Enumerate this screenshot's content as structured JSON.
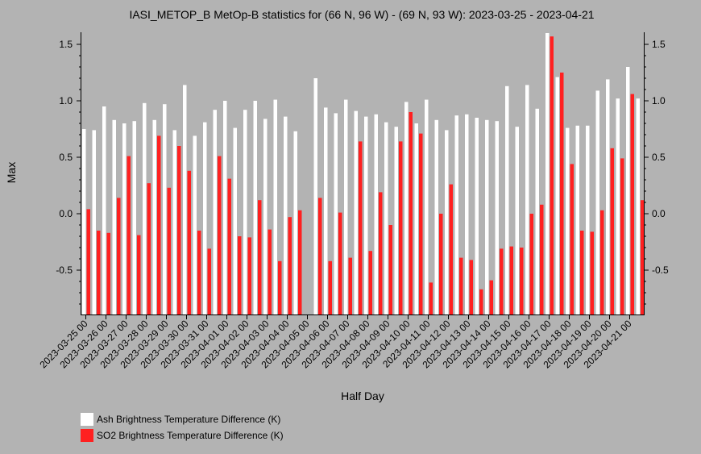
{
  "chart_data": {
    "type": "bar",
    "title": "IASI_METOP_B MetOp-B statistics for (66 N, 96 W) - (69 N, 93 W): 2023-03-25 - 2023-04-21",
    "xlabel": "Half Day",
    "ylabel": "Max",
    "ylim": [
      -0.9,
      1.6
    ],
    "yticks": [
      "-0.5",
      "0.0",
      "0.5",
      "1.0",
      "1.5"
    ],
    "categories": [
      "2023-03-25 00",
      "2023-03-25 12",
      "2023-03-26 00",
      "2023-03-26 12",
      "2023-03-27 00",
      "2023-03-27 12",
      "2023-03-28 00",
      "2023-03-28 12",
      "2023-03-29 00",
      "2023-03-29 12",
      "2023-03-30 00",
      "2023-03-30 12",
      "2023-03-31 00",
      "2023-03-31 12",
      "2023-04-01 00",
      "2023-04-01 12",
      "2023-04-02 00",
      "2023-04-02 12",
      "2023-04-03 00",
      "2023-04-03 12",
      "2023-04-04 00",
      "2023-04-04 12",
      "2023-04-05 00",
      "2023-04-05 12",
      "2023-04-06 00",
      "2023-04-06 12",
      "2023-04-07 00",
      "2023-04-07 12",
      "2023-04-08 00",
      "2023-04-08 12",
      "2023-04-09 00",
      "2023-04-09 12",
      "2023-04-10 00",
      "2023-04-10 12",
      "2023-04-11 00",
      "2023-04-11 12",
      "2023-04-12 00",
      "2023-04-12 12",
      "2023-04-13 00",
      "2023-04-13 12",
      "2023-04-14 00",
      "2023-04-14 12",
      "2023-04-15 00",
      "2023-04-15 12",
      "2023-04-16 00",
      "2023-04-16 12",
      "2023-04-17 00",
      "2023-04-17 12",
      "2023-04-18 00",
      "2023-04-18 12",
      "2023-04-19 00",
      "2023-04-19 12",
      "2023-04-20 00",
      "2023-04-20 12",
      "2023-04-21 00",
      "2023-04-21 12"
    ],
    "xtick_labels": [
      "2023-03-25 00",
      "2023-03-26 00",
      "2023-03-27 00",
      "2023-03-28 00",
      "2023-03-29 00",
      "2023-03-30 00",
      "2023-03-31 00",
      "2023-04-01 00",
      "2023-04-02 00",
      "2023-04-03 00",
      "2023-04-04 00",
      "2023-04-05 00",
      "2023-04-06 00",
      "2023-04-07 00",
      "2023-04-08 00",
      "2023-04-09 00",
      "2023-04-10 00",
      "2023-04-11 00",
      "2023-04-12 00",
      "2023-04-13 00",
      "2023-04-14 00",
      "2023-04-15 00",
      "2023-04-16 00",
      "2023-04-17 00",
      "2023-04-18 00",
      "2023-04-19 00",
      "2023-04-20 00",
      "2023-04-21 00"
    ],
    "series": [
      {
        "name": "Ash Brightness Temperature Difference (K)",
        "color": "#ffffff",
        "values": [
          0.75,
          0.74,
          0.95,
          0.83,
          0.8,
          0.82,
          0.98,
          0.83,
          0.97,
          0.74,
          1.14,
          0.69,
          0.81,
          0.92,
          1.0,
          0.76,
          0.92,
          1.0,
          0.84,
          1.01,
          0.86,
          0.73,
          null,
          1.2,
          0.94,
          0.89,
          1.01,
          0.91,
          0.86,
          0.88,
          0.81,
          0.77,
          0.99,
          0.8,
          1.01,
          0.83,
          0.74,
          0.87,
          0.88,
          0.85,
          0.83,
          0.82,
          1.13,
          0.77,
          1.14,
          0.93,
          1.6,
          1.21,
          0.76,
          0.78,
          0.78,
          1.09,
          1.19,
          1.02,
          1.3,
          1.02
        ]
      },
      {
        "name": "SO2 Brightness Temperature Difference (K)",
        "color": "#ff2020",
        "values": [
          0.04,
          -0.15,
          -0.17,
          0.14,
          0.51,
          -0.19,
          0.27,
          0.69,
          0.23,
          0.6,
          0.38,
          -0.15,
          -0.31,
          0.51,
          0.31,
          -0.2,
          -0.21,
          0.12,
          -0.14,
          -0.42,
          -0.03,
          0.03,
          null,
          0.14,
          -0.42,
          0.01,
          -0.39,
          0.64,
          -0.33,
          0.19,
          -0.1,
          0.64,
          0.9,
          0.71,
          -0.61,
          0.0,
          0.26,
          -0.39,
          -0.41,
          -0.67,
          -0.59,
          -0.31,
          -0.29,
          -0.3,
          0.0,
          0.08,
          1.57,
          1.25,
          0.44,
          -0.15,
          -0.16,
          0.03,
          0.58,
          0.49,
          1.06,
          0.12
        ]
      }
    ],
    "legend_position": "bottom-left",
    "grid": false
  }
}
